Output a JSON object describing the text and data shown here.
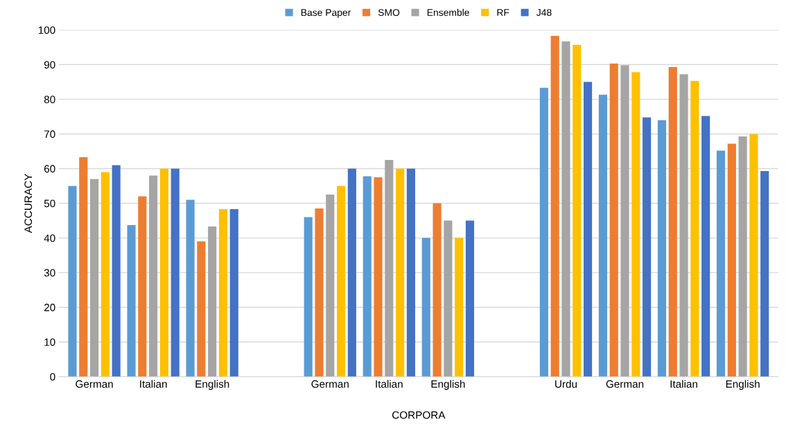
{
  "chart_data": {
    "type": "bar",
    "xlabel": "CORPORA",
    "ylabel": "ACCURACY",
    "categories": [
      "German",
      "Italian",
      "English",
      null,
      "German",
      "Italian",
      "English",
      null,
      "Urdu",
      "German",
      "Italian",
      "English"
    ],
    "series": [
      {
        "name": "Base Paper",
        "color": "#5b9bd5",
        "values": [
          55,
          43.7,
          51,
          null,
          46,
          57.8,
          40,
          null,
          83.3,
          81.3,
          74,
          65.2
        ]
      },
      {
        "name": "SMO",
        "color": "#ed7d31",
        "values": [
          63.3,
          52,
          39,
          null,
          48.5,
          57.5,
          50,
          null,
          98.3,
          90.3,
          89.3,
          67.2
        ]
      },
      {
        "name": "Ensemble",
        "color": "#a5a5a5",
        "values": [
          57,
          58,
          43.3,
          null,
          52.5,
          62.5,
          45,
          null,
          96.7,
          89.8,
          87.2,
          69.3
        ]
      },
      {
        "name": "RF",
        "color": "#ffc000",
        "values": [
          59,
          60,
          48.3,
          null,
          55,
          60,
          40,
          null,
          95.7,
          87.8,
          85.3,
          70
        ]
      },
      {
        "name": "J48",
        "color": "#4472c4",
        "values": [
          61,
          60,
          48.3,
          null,
          60,
          60,
          45,
          null,
          85,
          74.8,
          75.2,
          59.3
        ]
      }
    ],
    "ylim": [
      0,
      100
    ],
    "yticks": [
      0,
      10,
      20,
      30,
      40,
      50,
      60,
      70,
      80,
      90,
      100
    ],
    "grid": "y",
    "legend": "top"
  }
}
